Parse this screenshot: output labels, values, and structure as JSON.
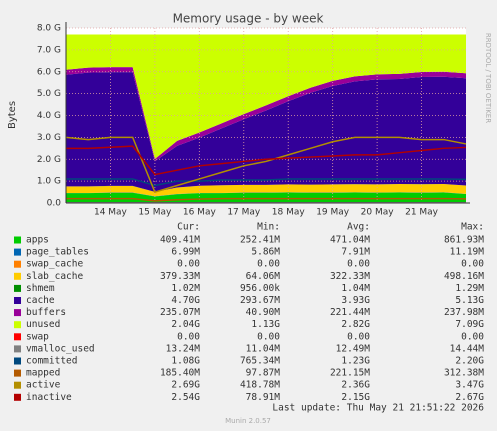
{
  "chart_data": {
    "type": "area",
    "title": "Memory usage - by week",
    "y_label": "Bytes",
    "side_text": "RRDTOOL / TOBI OETIKER",
    "footer": "Last update: Thu May 21 21:51:22 2026",
    "version": "Munin 2.0.57",
    "stat_headers": [
      "Cur:",
      "Min:",
      "Avg:",
      "Max:"
    ],
    "x": [
      null,
      null,
      "14 May",
      null,
      "15 May",
      null,
      "16 May",
      null,
      "17 May",
      null,
      "18 May",
      null,
      "19 May",
      null,
      "20 May",
      null,
      "21 May",
      null,
      null
    ],
    "ylim": [
      0,
      8
    ],
    "yticks": [
      {
        "value": 0,
        "label": "0.0"
      },
      {
        "value": 1,
        "label": "1.0 G"
      },
      {
        "value": 2,
        "label": "2.0 G"
      },
      {
        "value": 3,
        "label": "3.0 G"
      },
      {
        "value": 4,
        "label": "4.0 G"
      },
      {
        "value": 5,
        "label": "5.0 G"
      },
      {
        "value": 6,
        "label": "6.0 G"
      },
      {
        "value": 7,
        "label": "7.0 G"
      },
      {
        "value": 8,
        "label": "8.0 G"
      }
    ],
    "grid": true,
    "series": [
      {
        "name": "apps",
        "color": "#00cc00",
        "kind": "area",
        "stats": [
          "409.41M",
          "252.41M",
          "471.04M",
          "861.93M"
        ],
        "values": [
          0.45,
          0.45,
          0.47,
          0.47,
          0.3,
          0.4,
          0.45,
          0.45,
          0.47,
          0.47,
          0.48,
          0.47,
          0.47,
          0.48,
          0.47,
          0.48,
          0.47,
          0.48,
          0.41
        ]
      },
      {
        "name": "page_tables",
        "color": "#0066b3",
        "kind": "area",
        "stats": [
          "6.99M",
          "5.86M",
          "7.91M",
          "11.19M"
        ],
        "values": [
          0.01,
          0.01,
          0.01,
          0.01,
          0.01,
          0.01,
          0.01,
          0.01,
          0.01,
          0.01,
          0.01,
          0.01,
          0.01,
          0.01,
          0.01,
          0.01,
          0.01,
          0.01,
          0.01
        ]
      },
      {
        "name": "swap_cache",
        "color": "#ff8000",
        "kind": "area",
        "stats": [
          "0.00",
          "0.00",
          "0.00",
          "0.00"
        ],
        "values": [
          0,
          0,
          0,
          0,
          0,
          0,
          0,
          0,
          0,
          0,
          0,
          0,
          0,
          0,
          0,
          0,
          0,
          0,
          0
        ]
      },
      {
        "name": "slab_cache",
        "color": "#ffcc00",
        "kind": "area",
        "stats": [
          "379.33M",
          "64.06M",
          "322.33M",
          "498.16M"
        ],
        "values": [
          0.3,
          0.3,
          0.3,
          0.3,
          0.2,
          0.3,
          0.33,
          0.35,
          0.35,
          0.35,
          0.36,
          0.36,
          0.37,
          0.37,
          0.37,
          0.38,
          0.38,
          0.38,
          0.38
        ]
      },
      {
        "name": "shmem",
        "color": "#008f00",
        "kind": "area",
        "stats": [
          "1.02M",
          "956.00k",
          "1.04M",
          "1.29M"
        ],
        "values": [
          0.001,
          0.001,
          0.001,
          0.001,
          0.001,
          0.001,
          0.001,
          0.001,
          0.001,
          0.001,
          0.001,
          0.001,
          0.001,
          0.001,
          0.001,
          0.001,
          0.001,
          0.001,
          0.001
        ]
      },
      {
        "name": "cache",
        "color": "#330099",
        "kind": "area",
        "stats": [
          "4.70G",
          "293.67M",
          "3.93G",
          "5.13G"
        ],
        "values": [
          5.1,
          5.2,
          5.2,
          5.2,
          1.4,
          1.9,
          2.2,
          2.6,
          3.0,
          3.4,
          3.8,
          4.2,
          4.5,
          4.7,
          4.8,
          4.8,
          4.9,
          4.9,
          4.9
        ]
      },
      {
        "name": "buffers",
        "color": "#990099",
        "kind": "area",
        "stats": [
          "235.07M",
          "40.90M",
          "221.44M",
          "237.98M"
        ],
        "values": [
          0.23,
          0.23,
          0.23,
          0.23,
          0.1,
          0.23,
          0.23,
          0.23,
          0.23,
          0.23,
          0.23,
          0.23,
          0.23,
          0.23,
          0.23,
          0.23,
          0.23,
          0.23,
          0.23
        ]
      },
      {
        "name": "unused",
        "color": "#ccff00",
        "kind": "area",
        "stats": [
          "2.04G",
          "1.13G",
          "2.82G",
          "7.09G"
        ],
        "values": [
          1.61,
          1.51,
          1.49,
          1.49,
          5.69,
          4.86,
          4.48,
          4.06,
          3.64,
          3.24,
          2.82,
          2.43,
          2.12,
          1.91,
          1.82,
          1.8,
          1.71,
          1.7,
          1.77
        ]
      },
      {
        "name": "swap",
        "color": "#ff0000",
        "kind": "area",
        "stats": [
          "0.00",
          "0.00",
          "0.00",
          "0.00"
        ],
        "values": [
          0,
          0,
          0,
          0,
          0,
          0,
          0,
          0,
          0,
          0,
          0,
          0,
          0,
          0,
          0,
          0,
          0,
          0,
          0
        ]
      },
      {
        "name": "vmalloc_used",
        "color": "#808080",
        "kind": "line",
        "stats": [
          "13.24M",
          "11.04M",
          "12.49M",
          "14.44M"
        ],
        "values": [
          0.013,
          0.013,
          0.013,
          0.013,
          0.012,
          0.012,
          0.012,
          0.012,
          0.012,
          0.012,
          0.012,
          0.013,
          0.013,
          0.013,
          0.013,
          0.013,
          0.013,
          0.013,
          0.013
        ]
      },
      {
        "name": "committed",
        "color": "#00487d",
        "kind": "line",
        "stats": [
          "1.08G",
          "765.34M",
          "1.23G",
          "2.20G"
        ],
        "values": [
          1.1,
          1.1,
          1.1,
          1.1,
          0.8,
          1.0,
          1.0,
          1.05,
          1.05,
          1.05,
          1.1,
          1.1,
          1.1,
          1.1,
          1.1,
          1.1,
          1.1,
          1.1,
          1.08
        ]
      },
      {
        "name": "mapped",
        "color": "#b35a00",
        "kind": "line",
        "stats": [
          "185.40M",
          "97.87M",
          "221.15M",
          "312.38M"
        ],
        "values": [
          0.2,
          0.2,
          0.2,
          0.2,
          0.1,
          0.15,
          0.18,
          0.2,
          0.2,
          0.2,
          0.2,
          0.2,
          0.2,
          0.2,
          0.2,
          0.2,
          0.2,
          0.2,
          0.19
        ]
      },
      {
        "name": "active",
        "color": "#b38f00",
        "kind": "line",
        "stats": [
          "2.69G",
          "418.78M",
          "2.36G",
          "3.47G"
        ],
        "values": [
          3.0,
          2.9,
          3.0,
          3.0,
          0.5,
          0.8,
          1.1,
          1.4,
          1.7,
          1.9,
          2.2,
          2.5,
          2.8,
          3.0,
          3.0,
          3.0,
          2.9,
          2.9,
          2.7
        ]
      },
      {
        "name": "inactive",
        "color": "#b30000",
        "kind": "line",
        "stats": [
          "2.54G",
          "78.91M",
          "2.15G",
          "2.67G"
        ],
        "values": [
          2.5,
          2.5,
          2.55,
          2.6,
          1.3,
          1.5,
          1.7,
          1.8,
          1.9,
          2.0,
          2.05,
          2.1,
          2.15,
          2.2,
          2.2,
          2.3,
          2.4,
          2.5,
          2.54
        ]
      }
    ]
  }
}
